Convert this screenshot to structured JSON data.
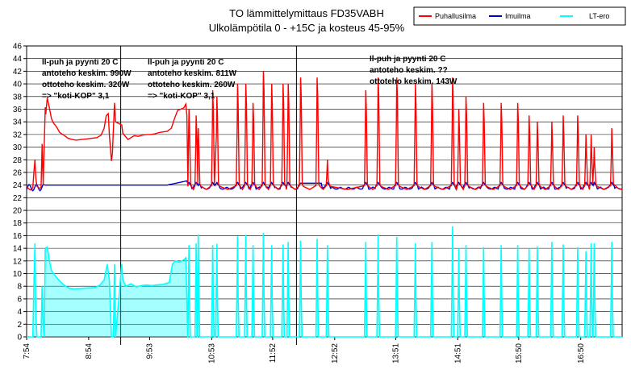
{
  "chart_data": {
    "type": "line",
    "title": [
      "TO lämmittelymittaus FD35VABH",
      "Ulkolämpötila 0 - +15C ja kosteus 45-95%"
    ],
    "ylim": [
      0,
      46
    ],
    "yticks": [
      0,
      2,
      4,
      6,
      8,
      10,
      12,
      14,
      16,
      18,
      20,
      22,
      24,
      26,
      28,
      30,
      32,
      34,
      36,
      38,
      40,
      42,
      44,
      46
    ],
    "xlim_min": [
      474,
      1050
    ],
    "xticks": [
      {
        "label": "7:54",
        "t": 474
      },
      {
        "label": "8:54",
        "t": 534
      },
      {
        "label": "9:53",
        "t": 593
      },
      {
        "label": "10:53",
        "t": 653
      },
      {
        "label": "11:52",
        "t": 712
      },
      {
        "label": "12:52",
        "t": 772
      },
      {
        "label": "13:51",
        "t": 831
      },
      {
        "label": "14:51",
        "t": 891
      },
      {
        "label": "15:50",
        "t": 950
      },
      {
        "label": "16:50",
        "t": 1010
      }
    ],
    "grid": true,
    "legend_position": "top-right",
    "dividers_t": [
      565,
      735
    ],
    "series": [
      {
        "name": "Puhallusilma",
        "color": "#ff0000"
      },
      {
        "name": "Imuilma",
        "color": "#0000cc"
      },
      {
        "name": "LT-ero",
        "color": "#00ffff"
      }
    ],
    "annotations": [
      {
        "lines": [
          "Il-puh ja pyynti 20 C",
          "antoteho keskim. 990W",
          "ottoteho keskim. 320W",
          "=> \"koti-KOP\" 3,1"
        ]
      },
      {
        "lines": [
          "Il-puh ja pyynti 20 C",
          "antoteho keskim. 811W",
          "ottoteho keskim. 260W",
          "=> \"koti-KOP\" 3,1"
        ]
      },
      {
        "lines": [
          "Il-puh ja pyynti 20 C",
          "antoteho keskim. ??",
          "ottoteho keskim. 143W"
        ]
      }
    ],
    "baseline": {
      "imuilma": 23.8,
      "puhallus": 23.7
    },
    "segments": [
      {
        "t0": 474,
        "t1": 481,
        "puh": 23.6
      },
      {
        "t0": 493,
        "t1": 542,
        "puh_path": [
          [
            493,
            37
          ],
          [
            496,
            36
          ],
          [
            499,
            34
          ],
          [
            503,
            33
          ],
          [
            510,
            32
          ],
          [
            516,
            31
          ],
          [
            522,
            31.2
          ],
          [
            530,
            31.3
          ],
          [
            538,
            31.5
          ],
          [
            542,
            31.6
          ]
        ]
      },
      {
        "t0": 542,
        "t1": 553,
        "puh_path": [
          [
            542,
            31.6
          ],
          [
            546,
            32
          ],
          [
            549,
            33
          ],
          [
            551,
            35
          ],
          [
            553,
            35.2
          ],
          [
            555,
            30
          ],
          [
            557,
            27.8
          ]
        ]
      },
      {
        "t0": 567,
        "t1": 628,
        "puh_path": [
          [
            567,
            32.5
          ],
          [
            570,
            31.6
          ],
          [
            574,
            31.4
          ],
          [
            580,
            31.6
          ],
          [
            590,
            31.8
          ],
          [
            600,
            32
          ],
          [
            610,
            32.2
          ],
          [
            616,
            33
          ],
          [
            620,
            35
          ],
          [
            624,
            36.2
          ],
          [
            628,
            36.5
          ]
        ]
      }
    ],
    "spikes_t": [
      481,
      489,
      576,
      631,
      638,
      640,
      654,
      658,
      678,
      686,
      693,
      703,
      711,
      722,
      727,
      739,
      755,
      765,
      802,
      814,
      832,
      850,
      866,
      886,
      892,
      899,
      916,
      933,
      949,
      960,
      968,
      982,
      993,
      1007,
      1015,
      1020,
      1023,
      1040
    ],
    "spike_peaks": [
      28,
      30.5,
      37,
      36,
      35,
      33,
      39,
      38,
      40,
      40,
      37,
      42,
      40,
      40,
      40,
      41,
      41,
      28,
      39,
      41,
      41,
      40,
      40,
      41,
      36,
      38,
      37,
      37,
      37,
      35,
      34,
      34,
      35,
      35,
      32,
      32,
      30,
      33
    ],
    "lt_spikes": [
      14.8,
      14.2,
      12,
      14.5,
      14.8,
      16.2,
      14.5,
      14.7,
      15.9,
      16.1,
      14.5,
      16.4,
      14.5,
      14.6,
      15,
      15.2,
      15.5,
      14.5,
      15,
      16.2,
      15.8,
      14.8,
      15,
      17.5,
      14,
      14.5,
      14.2,
      14.5,
      14.5,
      14,
      14.3,
      15,
      14.6,
      14.2,
      13.5,
      14.8,
      14.8,
      15
    ]
  },
  "legend": {
    "items": [
      "Puhallusilma",
      "Imuilma",
      "LT-ero"
    ]
  }
}
